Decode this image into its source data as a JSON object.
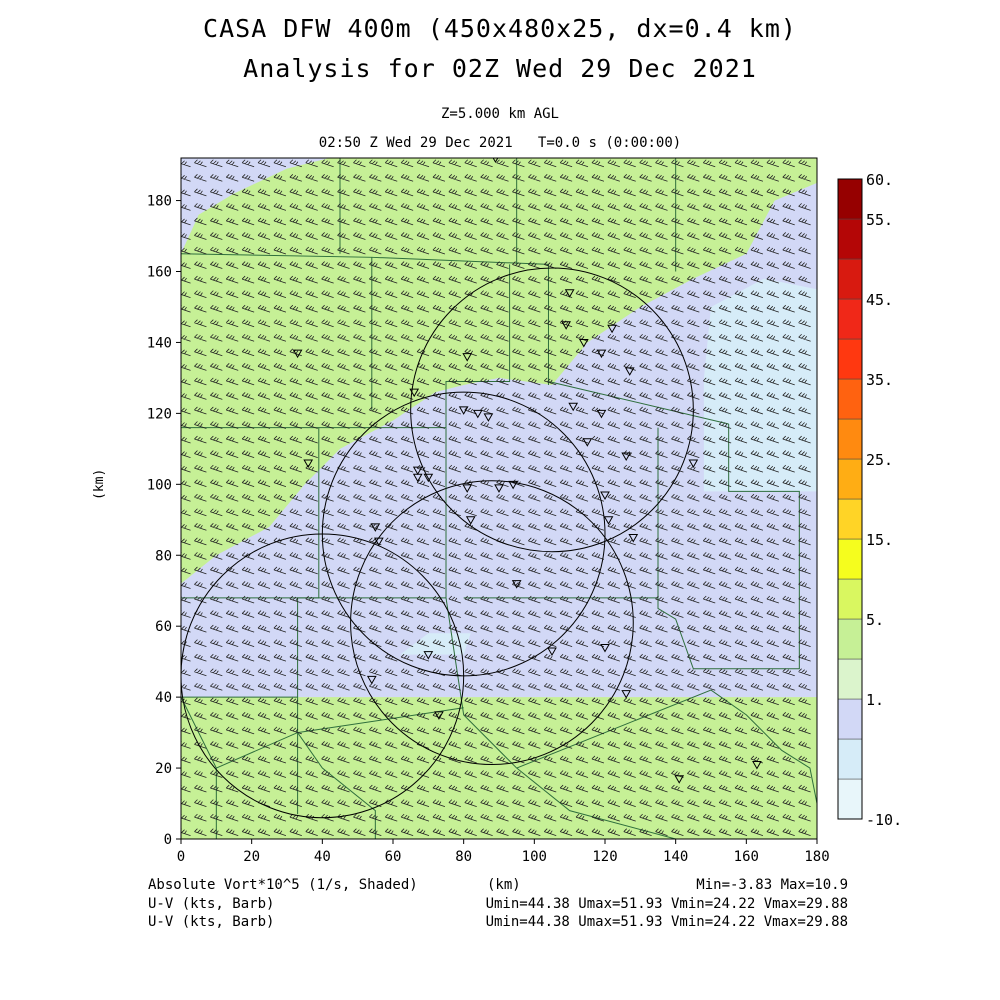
{
  "header": {
    "title_line1": "CASA DFW 400m (450x480x25, dx=0.4 km)",
    "title_line2": "Analysis for 02Z Wed 29 Dec 2021",
    "level": "Z=5.000 km AGL",
    "valid_time": "02:50 Z Wed 29 Dec 2021   T=0.0 s (0:00:00)"
  },
  "footer": {
    "field_label": "Absolute Vort*10^5 (1/s, Shaded)",
    "xunit": "(km)",
    "minmax": "Min=-3.83 Max=10.9",
    "wind1_label": "U-V (kts, Barb)",
    "wind1_stats": "Umin=44.38 Umax=51.93 Vmin=24.22 Vmax=29.88",
    "wind2_label": "U-V (kts, Barb)",
    "wind2_stats": "Umin=44.38 Umax=51.93 Vmin=24.22 Vmax=29.88"
  },
  "chart_data": {
    "type": "heatmap",
    "xlabel": "(km)",
    "ylabel": "(km)",
    "xlim": [
      0,
      180
    ],
    "ylim": [
      0,
      192
    ],
    "xticks": [
      0,
      20,
      40,
      60,
      80,
      100,
      120,
      140,
      160,
      180
    ],
    "yticks": [
      0,
      20,
      40,
      60,
      80,
      100,
      120,
      140,
      160,
      180
    ],
    "colorbar": {
      "labels": [
        {
          "text": "60.",
          "value": 60
        },
        {
          "text": "55.",
          "value": 55
        },
        {
          "text": "45.",
          "value": 45
        },
        {
          "text": "35.",
          "value": 35
        },
        {
          "text": "25.",
          "value": 25
        },
        {
          "text": "15.",
          "value": 15
        },
        {
          "text": "5.",
          "value": 5
        },
        {
          "text": "1.",
          "value": 1
        },
        {
          "text": "-10.",
          "value": -10
        }
      ],
      "colors": [
        "#e8f6fa",
        "#d6ecf8",
        "#d2d8f6",
        "#dbf4cc",
        "#c6f096",
        "#d9f760",
        "#f5fd1e",
        "#ffd426",
        "#ffad14",
        "#ff8a10",
        "#ff6210",
        "#ff3810",
        "#f02818",
        "#d81a10",
        "#b40606",
        "#960000"
      ]
    },
    "shading": {
      "background": "#c6f096",
      "regions": [
        {
          "level": "1-3",
          "color": "#d2d8f6",
          "polygon": [
            [
              0,
              40
            ],
            [
              180,
              40
            ],
            [
              180,
              185
            ],
            [
              168,
              180
            ],
            [
              160,
              165
            ],
            [
              145,
              158
            ],
            [
              130,
              150
            ],
            [
              115,
              140
            ],
            [
              105,
              128
            ],
            [
              90,
              130
            ],
            [
              80,
              128
            ],
            [
              72,
              126
            ],
            [
              60,
              118
            ],
            [
              45,
              110
            ],
            [
              35,
              100
            ],
            [
              25,
              88
            ],
            [
              10,
              80
            ],
            [
              0,
              72
            ]
          ]
        },
        {
          "level": "1-3",
          "color": "#d2d8f6",
          "polygon": [
            [
              0,
              165
            ],
            [
              5,
              176
            ],
            [
              15,
              182
            ],
            [
              30,
              189
            ],
            [
              42,
              192
            ],
            [
              0,
              192
            ]
          ]
        },
        {
          "level": "-1-1",
          "color": "#d6ecf8",
          "polygon": [
            [
              148,
              98
            ],
            [
              180,
              98
            ],
            [
              180,
              155
            ],
            [
              165,
              158
            ],
            [
              150,
              150
            ],
            [
              148,
              130
            ]
          ]
        },
        {
          "level": "-1-1",
          "color": "#d6ecf8",
          "polygon": [
            [
              62,
              52
            ],
            [
              80,
              52
            ],
            [
              82,
              58
            ],
            [
              70,
              58
            ]
          ]
        }
      ]
    },
    "wind": {
      "u_range_kts": [
        44.38,
        51.93
      ],
      "v_range_kts": [
        24.22,
        29.88
      ],
      "grid_spacing_km": [
        4.5,
        4.1
      ]
    },
    "radar_range_rings": [
      {
        "center": [
          105,
          121
        ],
        "radius": 40
      },
      {
        "center": [
          80,
          86
        ],
        "radius": 40
      },
      {
        "center": [
          40,
          46
        ],
        "radius": 40
      },
      {
        "center": [
          88,
          61
        ],
        "radius": 40
      }
    ],
    "stations": [
      [
        89,
        192
      ],
      [
        110,
        154
      ],
      [
        109,
        145
      ],
      [
        122,
        144
      ],
      [
        114,
        140
      ],
      [
        119,
        137
      ],
      [
        127,
        132
      ],
      [
        81,
        136
      ],
      [
        33,
        137
      ],
      [
        66,
        126
      ],
      [
        80,
        121
      ],
      [
        84,
        120
      ],
      [
        87,
        119
      ],
      [
        111,
        122
      ],
      [
        119,
        120
      ],
      [
        115,
        112
      ],
      [
        126,
        108
      ],
      [
        145,
        106
      ],
      [
        36,
        106
      ],
      [
        67,
        104
      ],
      [
        67,
        102
      ],
      [
        70,
        102
      ],
      [
        81,
        99
      ],
      [
        90,
        99
      ],
      [
        94,
        100
      ],
      [
        120,
        97
      ],
      [
        82,
        90
      ],
      [
        121,
        90
      ],
      [
        128,
        85
      ],
      [
        55,
        88
      ],
      [
        56,
        84
      ],
      [
        95,
        72
      ],
      [
        70,
        52
      ],
      [
        105,
        53
      ],
      [
        120,
        54
      ],
      [
        54,
        45
      ],
      [
        73,
        35
      ],
      [
        126,
        41
      ],
      [
        141,
        17
      ],
      [
        163,
        21
      ]
    ],
    "boundaries": [
      [
        [
          0,
          40
        ],
        [
          33,
          40
        ],
        [
          33,
          7
        ]
      ],
      [
        [
          33,
          40
        ],
        [
          33,
          68
        ],
        [
          0,
          68
        ]
      ],
      [
        [
          33,
          68
        ],
        [
          39,
          68
        ],
        [
          39,
          116
        ]
      ],
      [
        [
          0,
          116
        ],
        [
          39,
          116
        ],
        [
          75,
          116
        ]
      ],
      [
        [
          75,
          116
        ],
        [
          75,
          68
        ],
        [
          33,
          68
        ]
      ],
      [
        [
          75,
          116
        ],
        [
          75,
          129
        ],
        [
          93,
          129
        ],
        [
          93,
          162
        ]
      ],
      [
        [
          0,
          165
        ],
        [
          54,
          164
        ],
        [
          54,
          121
        ]
      ],
      [
        [
          54,
          164
        ],
        [
          104,
          162
        ],
        [
          104,
          128
        ]
      ],
      [
        [
          0,
          165
        ],
        [
          0,
          120
        ]
      ],
      [
        [
          45,
          165
        ],
        [
          45,
          192
        ]
      ],
      [
        [
          95,
          162
        ],
        [
          95,
          192
        ]
      ],
      [
        [
          140,
          160
        ],
        [
          140,
          192
        ]
      ],
      [
        [
          104,
          129
        ],
        [
          155,
          117
        ]
      ],
      [
        [
          155,
          117
        ],
        [
          155,
          98
        ],
        [
          175,
          98
        ],
        [
          175,
          48
        ],
        [
          145,
          48
        ],
        [
          140,
          62
        ],
        [
          135,
          65
        ],
        [
          135,
          116
        ]
      ],
      [
        [
          135,
          68
        ],
        [
          80,
          68
        ]
      ],
      [
        [
          75,
          68
        ],
        [
          80,
          35
        ],
        [
          95,
          20
        ],
        [
          110,
          8
        ],
        [
          140,
          0
        ]
      ],
      [
        [
          0,
          40
        ],
        [
          10,
          20
        ],
        [
          10,
          0
        ]
      ],
      [
        [
          10,
          20
        ],
        [
          33,
          30
        ],
        [
          40,
          20
        ],
        [
          55,
          8
        ],
        [
          55,
          0
        ]
      ],
      [
        [
          33,
          30
        ],
        [
          80,
          37
        ]
      ],
      [
        [
          95,
          20
        ],
        [
          150,
          42
        ],
        [
          160,
          35
        ],
        [
          170,
          25
        ],
        [
          178,
          20
        ],
        [
          180,
          10
        ]
      ]
    ]
  }
}
